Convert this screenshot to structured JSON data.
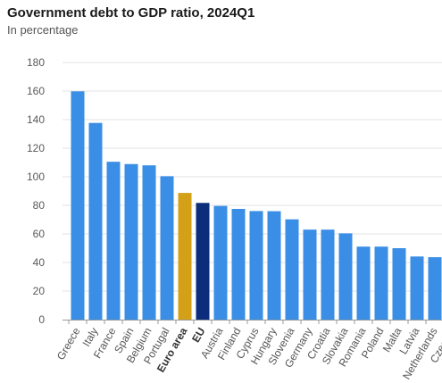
{
  "title": "Government debt to GDP ratio, 2024Q1",
  "subtitle": "In percentage",
  "colors": {
    "default": "#3a8ee6",
    "euro_area": "#d4a017",
    "eu": "#0b2d7c",
    "grid": "#e3e3e3",
    "axis": "#999999"
  },
  "chart_data": {
    "type": "bar",
    "title": "Government debt to GDP ratio, 2024Q1",
    "subtitle": "In percentage",
    "xlabel": "",
    "ylabel": "",
    "ylim": [
      0,
      180
    ],
    "yticks": [
      0,
      20,
      40,
      60,
      80,
      100,
      120,
      140,
      160,
      180
    ],
    "grid": true,
    "categories": [
      "Greece",
      "Italy",
      "France",
      "Spain",
      "Belgium",
      "Portugal",
      "Euro area",
      "EU",
      "Austria",
      "Finland",
      "Cyprus",
      "Hungary",
      "Slovenia",
      "Germany",
      "Croatia",
      "Slovakia",
      "Romania",
      "Poland",
      "Malta",
      "Latvia",
      "Netherlands",
      "Czechia"
    ],
    "values": [
      159.8,
      137.7,
      110.5,
      108.9,
      108.0,
      100.4,
      88.7,
      81.7,
      79.6,
      77.5,
      76.0,
      75.9,
      70.2,
      63.0,
      63.0,
      60.4,
      51.1,
      51.1,
      50.0,
      44.2,
      43.7,
      43.5
    ],
    "highlights": {
      "Euro area": "euro_area",
      "EU": "eu"
    },
    "bold_labels": [
      "Euro area",
      "EU"
    ]
  }
}
